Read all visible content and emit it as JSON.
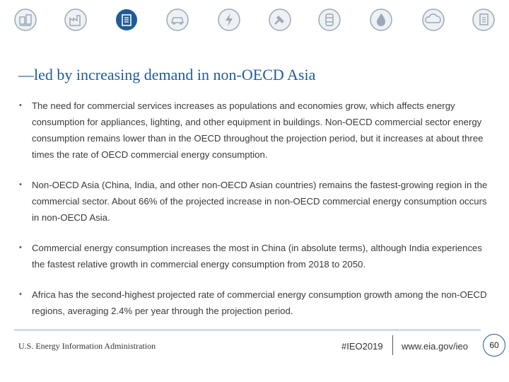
{
  "icons": [
    {
      "name": "residential-icon",
      "color": "#9aa9b8"
    },
    {
      "name": "industrial-icon",
      "color": "#9aa9b8"
    },
    {
      "name": "commercial-icon",
      "color": "#1f5c99",
      "active": true
    },
    {
      "name": "transportation-icon",
      "color": "#9aa9b8"
    },
    {
      "name": "electricity-icon",
      "color": "#9aa9b8"
    },
    {
      "name": "renewables-icon",
      "color": "#9aa9b8"
    },
    {
      "name": "petroleum-icon",
      "color": "#9aa9b8"
    },
    {
      "name": "natural-gas-icon",
      "color": "#9aa9b8"
    },
    {
      "name": "co2-emissions-icon",
      "color": "#9aa9b8"
    },
    {
      "name": "appendix-icon",
      "color": "#9aa9b8"
    }
  ],
  "title": "—led by increasing demand in non-OECD Asia",
  "bullets": [
    "The need for commercial services increases as populations and economies grow, which affects energy consumption for appliances, lighting, and other equipment in buildings. Non-OECD commercial sector energy consumption remains lower than in the OECD throughout the projection period, but it increases at about three times the rate of OECD commercial energy consumption.",
    "Non-OECD Asia (China, India, and other non-OECD Asian countries) remains the fastest-growing region in the commercial sector. About 66% of the projected increase in non-OECD commercial energy consumption occurs in non-OECD Asia.",
    "Commercial energy consumption increases the most in China (in absolute terms), although India experiences the fastest relative growth in commercial energy consumption from 2018 to 2050.",
    "Africa has the second-highest projected rate of commercial energy consumption growth among the non-OECD regions, averaging 2.4% per year through the projection period."
  ],
  "footer": {
    "agency": "U.S. Energy Information Administration",
    "hashtag": "#IEO2019",
    "url": "www.eia.gov/ieo",
    "page_number": "60"
  },
  "colors": {
    "accent": "#1f5c99",
    "inactive_icon": "#9aa9b8",
    "body_text": "#3a3a3a"
  }
}
